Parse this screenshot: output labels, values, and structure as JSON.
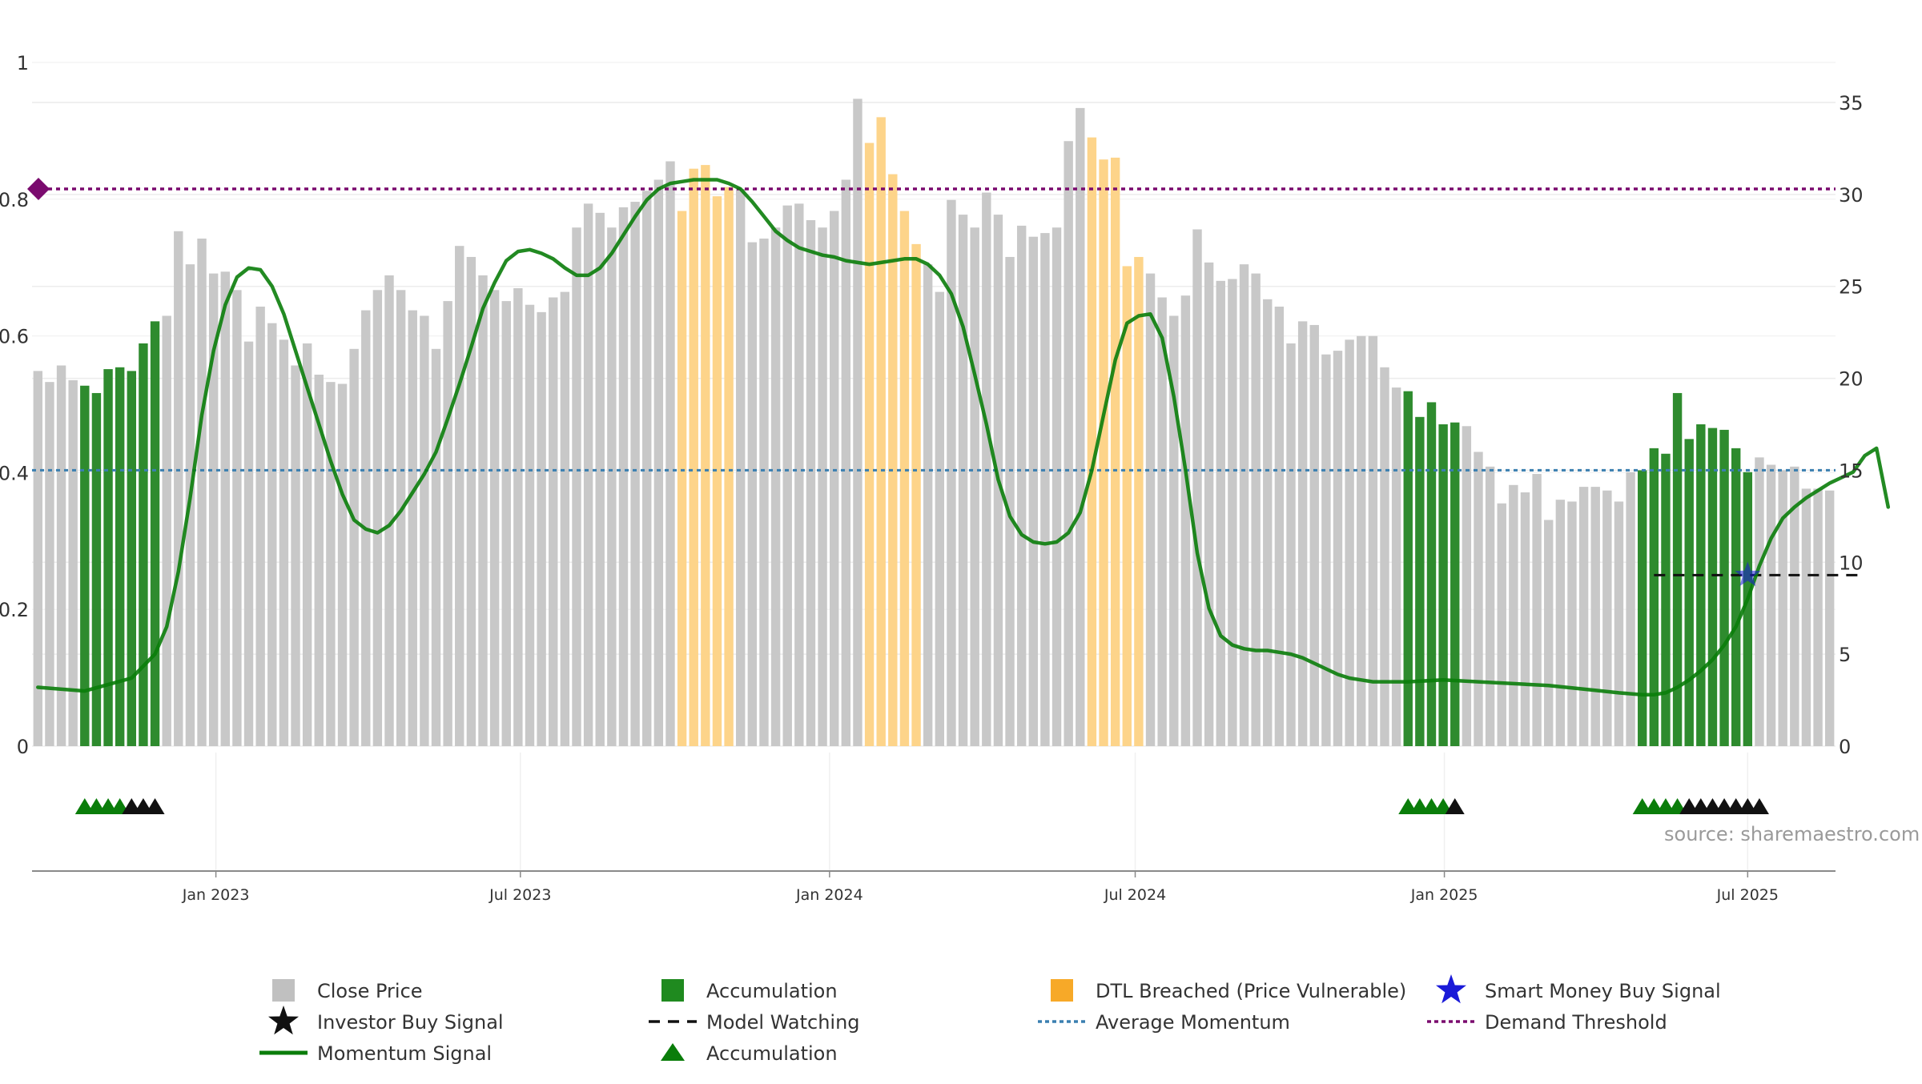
{
  "chart_data": {
    "type": "bar",
    "left_axis": {
      "ticks": [
        "0",
        "0.2",
        "0.4",
        "0.6",
        "0.8",
        "1"
      ],
      "ylim": [
        0,
        1
      ]
    },
    "right_axis": {
      "ticks": [
        "0",
        "5",
        "10",
        "15",
        "20",
        "25",
        "30",
        "35"
      ],
      "ylim": [
        0,
        35
      ]
    },
    "x_axis": {
      "ticks": [
        "Jan 2023",
        "Jul 2023",
        "Jan 2024",
        "Jul 2024",
        "Jan 2025",
        "Jul 2025"
      ]
    },
    "grid": true,
    "series": [
      {
        "name": "Close Price",
        "color": "#c8c8c8",
        "values": [
          20.4,
          19.8,
          20.7,
          19.9,
          19.6,
          19.2,
          20.5,
          20.6,
          20.4,
          21.9,
          23.1,
          23.4,
          28.0,
          26.2,
          27.6,
          25.7,
          25.8,
          24.8,
          22.0,
          23.9,
          23.0,
          22.1,
          20.7,
          21.9,
          20.2,
          19.8,
          19.7,
          21.6,
          23.7,
          24.8,
          25.6,
          24.8,
          23.7,
          23.4,
          21.6,
          24.2,
          27.2,
          26.6,
          25.6,
          24.8,
          24.2,
          24.9,
          24.0,
          23.6,
          24.4,
          24.7,
          28.2,
          29.5,
          29.0,
          28.2,
          29.3,
          29.6,
          30.2,
          30.8,
          31.8,
          29.1,
          31.4,
          31.6,
          29.9,
          30.4,
          30.3,
          27.4,
          27.6,
          28.2,
          29.4,
          29.5,
          28.6,
          28.2,
          29.1,
          30.8,
          35.2,
          32.8,
          34.2,
          31.1,
          29.1,
          27.3,
          26.2,
          24.7,
          29.7,
          28.9,
          28.2,
          30.1,
          28.9,
          26.6,
          28.3,
          27.7,
          27.9,
          28.2,
          32.9,
          34.7,
          33.1,
          31.9,
          32.0,
          26.1,
          26.6,
          25.7,
          24.4,
          23.4,
          24.5,
          28.1,
          26.3,
          25.3,
          25.4,
          26.2,
          25.7,
          24.3,
          23.9,
          21.9,
          23.1,
          22.9,
          21.3,
          21.5,
          22.1,
          22.3,
          22.3,
          20.6,
          19.5,
          19.3,
          17.9,
          18.7,
          17.5,
          17.6,
          17.4,
          16.0,
          15.2,
          13.2,
          14.2,
          13.8,
          14.8,
          12.3,
          13.4,
          13.3,
          14.1,
          14.1,
          13.9,
          13.3,
          14.9,
          15.0,
          16.2,
          15.9,
          19.2,
          16.7,
          17.5,
          17.3,
          17.2,
          16.2,
          14.9,
          15.7,
          15.3,
          15.0,
          15.2,
          14.0,
          14.0,
          13.9
        ]
      },
      {
        "name": "Momentum Signal",
        "color": "#0a7d0a"
      },
      {
        "name": "Average Momentum",
        "color": "#3a7fb0",
        "value": 15.0
      },
      {
        "name": "Demand Threshold",
        "color": "#7a0a6e",
        "value": 30.3
      },
      {
        "name": "Model Watching",
        "color": "#111111",
        "value": 9.3,
        "x_range": [
          138,
          156
        ]
      },
      {
        "name": "Smart Money Buy Signal",
        "color": "#1a1ad8",
        "points": [
          [
            146,
            9.3
          ]
        ]
      }
    ],
    "accumulation_ranges": [
      [
        4,
        10
      ],
      [
        117,
        121
      ],
      [
        137,
        146
      ]
    ],
    "dtl_breached_ranges": [
      [
        55,
        59
      ],
      [
        71,
        75
      ],
      [
        90,
        94
      ]
    ],
    "momentum": [
      [
        0,
        3.2
      ],
      [
        4,
        3.0
      ],
      [
        8,
        3.7
      ],
      [
        10,
        5.0
      ],
      [
        11,
        6.5
      ],
      [
        12,
        9.5
      ],
      [
        13,
        13.5
      ],
      [
        14,
        18.0
      ],
      [
        15,
        21.5
      ],
      [
        16,
        24.0
      ],
      [
        17,
        25.5
      ],
      [
        18,
        26.0
      ],
      [
        19,
        25.9
      ],
      [
        20,
        25.0
      ],
      [
        21,
        23.5
      ],
      [
        22,
        21.5
      ],
      [
        23,
        19.5
      ],
      [
        24,
        17.5
      ],
      [
        25,
        15.5
      ],
      [
        26,
        13.7
      ],
      [
        27,
        12.3
      ],
      [
        28,
        11.8
      ],
      [
        29,
        11.6
      ],
      [
        30,
        12.0
      ],
      [
        31,
        12.8
      ],
      [
        32,
        13.8
      ],
      [
        33,
        14.8
      ],
      [
        34,
        16.0
      ],
      [
        35,
        17.8
      ],
      [
        36,
        19.7
      ],
      [
        37,
        21.7
      ],
      [
        38,
        23.8
      ],
      [
        39,
        25.2
      ],
      [
        40,
        26.4
      ],
      [
        41,
        26.9
      ],
      [
        42,
        27.0
      ],
      [
        43,
        26.8
      ],
      [
        44,
        26.5
      ],
      [
        45,
        26.0
      ],
      [
        46,
        25.6
      ],
      [
        47,
        25.6
      ],
      [
        48,
        26.0
      ],
      [
        49,
        26.8
      ],
      [
        50,
        27.8
      ],
      [
        51,
        28.8
      ],
      [
        52,
        29.7
      ],
      [
        53,
        30.3
      ],
      [
        54,
        30.6
      ],
      [
        55,
        30.7
      ],
      [
        56,
        30.8
      ],
      [
        57,
        30.8
      ],
      [
        58,
        30.8
      ],
      [
        59,
        30.6
      ],
      [
        60,
        30.3
      ],
      [
        61,
        29.6
      ],
      [
        62,
        28.8
      ],
      [
        63,
        28.0
      ],
      [
        64,
        27.5
      ],
      [
        65,
        27.1
      ],
      [
        66,
        26.9
      ],
      [
        67,
        26.7
      ],
      [
        68,
        26.6
      ],
      [
        69,
        26.4
      ],
      [
        70,
        26.3
      ],
      [
        71,
        26.2
      ],
      [
        72,
        26.3
      ],
      [
        73,
        26.4
      ],
      [
        74,
        26.5
      ],
      [
        75,
        26.5
      ],
      [
        76,
        26.2
      ],
      [
        77,
        25.6
      ],
      [
        78,
        24.6
      ],
      [
        79,
        22.8
      ],
      [
        80,
        20.2
      ],
      [
        81,
        17.5
      ],
      [
        82,
        14.5
      ],
      [
        83,
        12.5
      ],
      [
        84,
        11.5
      ],
      [
        85,
        11.1
      ],
      [
        86,
        11.0
      ],
      [
        87,
        11.1
      ],
      [
        88,
        11.6
      ],
      [
        89,
        12.7
      ],
      [
        90,
        15.0
      ],
      [
        91,
        18.0
      ],
      [
        92,
        21.0
      ],
      [
        93,
        23.0
      ],
      [
        94,
        23.4
      ],
      [
        95,
        23.5
      ],
      [
        96,
        22.2
      ],
      [
        97,
        19.0
      ],
      [
        98,
        15.0
      ],
      [
        99,
        10.5
      ],
      [
        100,
        7.5
      ],
      [
        101,
        6.0
      ],
      [
        102,
        5.5
      ],
      [
        103,
        5.3
      ],
      [
        104,
        5.2
      ],
      [
        105,
        5.2
      ],
      [
        106,
        5.1
      ],
      [
        107,
        5.0
      ],
      [
        108,
        4.8
      ],
      [
        109,
        4.5
      ],
      [
        110,
        4.2
      ],
      [
        111,
        3.9
      ],
      [
        112,
        3.7
      ],
      [
        113,
        3.6
      ],
      [
        114,
        3.5
      ],
      [
        115,
        3.5
      ],
      [
        117,
        3.5
      ],
      [
        120,
        3.6
      ],
      [
        123,
        3.5
      ],
      [
        126,
        3.4
      ],
      [
        129,
        3.3
      ],
      [
        132,
        3.1
      ],
      [
        135,
        2.9
      ],
      [
        137,
        2.8
      ],
      [
        138,
        2.8
      ],
      [
        139,
        2.9
      ],
      [
        140,
        3.2
      ],
      [
        141,
        3.6
      ],
      [
        142,
        4.1
      ],
      [
        143,
        4.7
      ],
      [
        144,
        5.5
      ],
      [
        145,
        6.5
      ],
      [
        146,
        8.0
      ],
      [
        147,
        9.8
      ],
      [
        148,
        11.3
      ],
      [
        149,
        12.4
      ],
      [
        150,
        13.0
      ],
      [
        151,
        13.5
      ],
      [
        152,
        13.9
      ],
      [
        153,
        14.3
      ],
      [
        154,
        14.6
      ],
      [
        155,
        14.9
      ],
      [
        156,
        15.8
      ],
      [
        157,
        16.2
      ],
      [
        158,
        13.0
      ]
    ],
    "accumulation_markers": [
      {
        "x": [
          4,
          5,
          6,
          7
        ],
        "color": "#0a7d0a"
      },
      {
        "x": [
          8,
          9,
          10
        ],
        "color": "#111111"
      },
      {
        "x": [
          117,
          118,
          119,
          120
        ],
        "color": "#0a7d0a"
      },
      {
        "x": [
          121
        ],
        "color": "#111111"
      },
      {
        "x": [
          137,
          138,
          139,
          140
        ],
        "color": "#0a7d0a"
      },
      {
        "x": [
          141,
          142,
          143,
          144,
          145,
          146,
          147
        ],
        "color": "#111111"
      }
    ],
    "x_tick_positions": [
      15.2,
      41.2,
      67.6,
      93.7,
      120.1,
      146.0
    ]
  },
  "source": "source: sharemaestro.com",
  "legend": [
    {
      "label": "Close Price",
      "icon": "gray-square-icon",
      "color": "#c0c0c0"
    },
    {
      "label": "Accumulation",
      "icon": "green-square-icon",
      "color": "#1f8a1f"
    },
    {
      "label": "DTL Breached (Price Vulnerable)",
      "icon": "orange-square-icon",
      "color": "#f7a928"
    },
    {
      "label": "Smart Money Buy Signal",
      "icon": "blue-star-icon",
      "color": "#1a1ad8"
    },
    {
      "label": "Investor Buy Signal",
      "icon": "black-star-icon",
      "color": "#111111"
    },
    {
      "label": "Model Watching",
      "icon": "black-dash-icon",
      "color": "#111111"
    },
    {
      "label": "Average Momentum",
      "icon": "blue-dotted-line-icon",
      "color": "#3a7fb0"
    },
    {
      "label": "Demand Threshold",
      "icon": "purple-dotted-line-icon",
      "color": "#7a0a6e"
    },
    {
      "label": "Momentum Signal",
      "icon": "green-line-icon",
      "color": "#0a7d0a"
    },
    {
      "label": "Accumulation",
      "icon": "green-triangle-icon",
      "color": "#0a7d0a"
    }
  ],
  "colors": {
    "close": "#c8c8c8",
    "accumulation": "#2e8b2e",
    "dtl": "#fdd48a",
    "grid": "#ececec",
    "axis": "#8a8a8a"
  }
}
